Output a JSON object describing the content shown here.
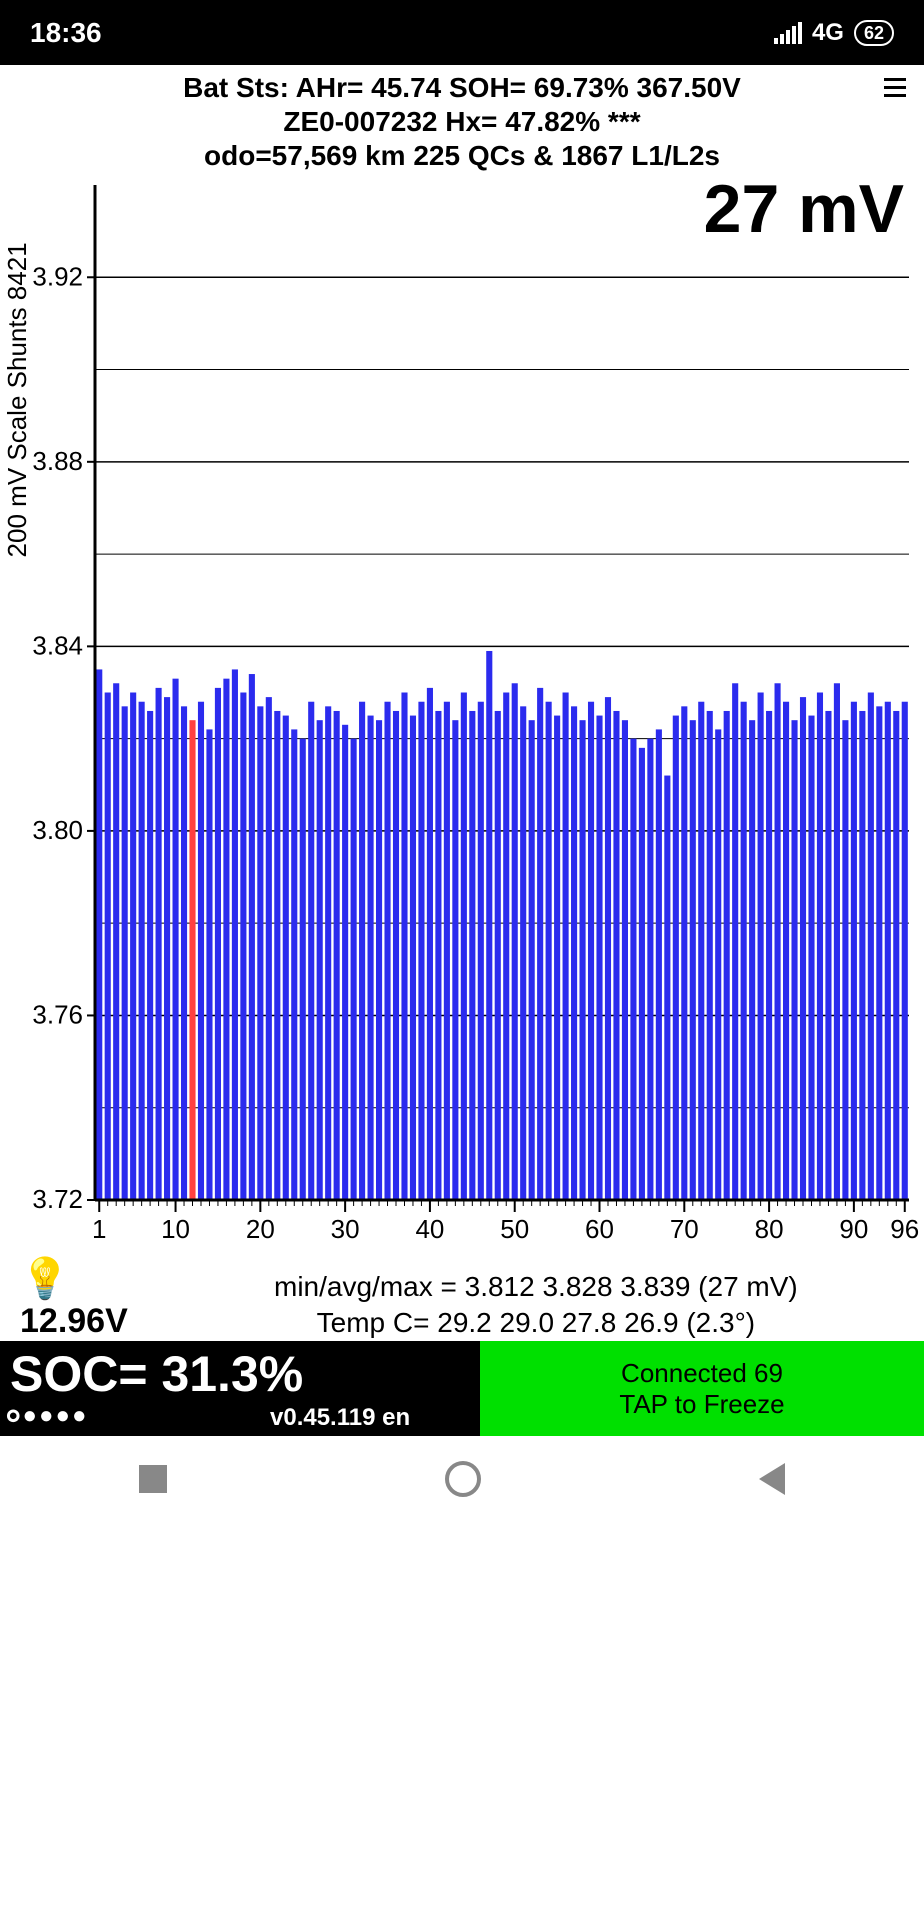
{
  "statusbar": {
    "time": "18:36",
    "network": "4G",
    "battery": "62"
  },
  "header": {
    "line1": "Bat Sts:  AHr= 45.74  SOH= 69.73%   367.50V",
    "line2": "ZE0-007232   Hx= 47.82% ***",
    "line3": "odo=57,569 km 225 QCs & 1867 L1/L2s"
  },
  "chart": {
    "big_number": "27 mV",
    "ylabel": "200 mV Scale   Shunts 8421",
    "ymin": 3.72,
    "ymax": 3.94,
    "ytick_major": [
      3.72,
      3.76,
      3.8,
      3.84,
      3.88,
      3.92
    ],
    "ytick_minor": [
      3.74,
      3.78,
      3.82,
      3.86,
      3.9
    ],
    "ytick_labels": [
      "3.72",
      "3.76",
      "3.80",
      "3.84",
      "3.88",
      "3.92"
    ],
    "xticks": [
      1,
      10,
      20,
      30,
      40,
      50,
      60,
      70,
      80,
      90,
      96
    ],
    "bar_color": "#2b2bee",
    "highlight_color": "#ff4040",
    "highlight_index": 12,
    "axis_color": "#000000",
    "grid_color": "#000000",
    "n_cells": 96,
    "cells": [
      3.835,
      3.83,
      3.832,
      3.827,
      3.83,
      3.828,
      3.826,
      3.831,
      3.829,
      3.833,
      3.827,
      3.824,
      3.828,
      3.822,
      3.831,
      3.833,
      3.835,
      3.83,
      3.834,
      3.827,
      3.829,
      3.826,
      3.825,
      3.822,
      3.82,
      3.828,
      3.824,
      3.827,
      3.826,
      3.823,
      3.82,
      3.828,
      3.825,
      3.824,
      3.828,
      3.826,
      3.83,
      3.825,
      3.828,
      3.831,
      3.826,
      3.828,
      3.824,
      3.83,
      3.826,
      3.828,
      3.839,
      3.826,
      3.83,
      3.832,
      3.827,
      3.824,
      3.831,
      3.828,
      3.825,
      3.83,
      3.827,
      3.824,
      3.828,
      3.825,
      3.829,
      3.826,
      3.824,
      3.82,
      3.818,
      3.82,
      3.822,
      3.812,
      3.825,
      3.827,
      3.824,
      3.828,
      3.826,
      3.822,
      3.826,
      3.832,
      3.828,
      3.824,
      3.83,
      3.826,
      3.832,
      3.828,
      3.824,
      3.829,
      3.825,
      3.83,
      3.826,
      3.832,
      3.824,
      3.828,
      3.826,
      3.83,
      3.827,
      3.828,
      3.826,
      3.828
    ]
  },
  "below": {
    "minavgmax": "min/avg/max = 3.812 3.828 3.839  (27 mV)",
    "temp": "Temp C= 29.2  29.0  27.8  26.9 (2.3°)",
    "voltage": "12.96V"
  },
  "bottom": {
    "soc": "SOC= 31.3%",
    "version": "v0.45.119 en",
    "connected": "Connected 69",
    "tap": "TAP to Freeze"
  }
}
